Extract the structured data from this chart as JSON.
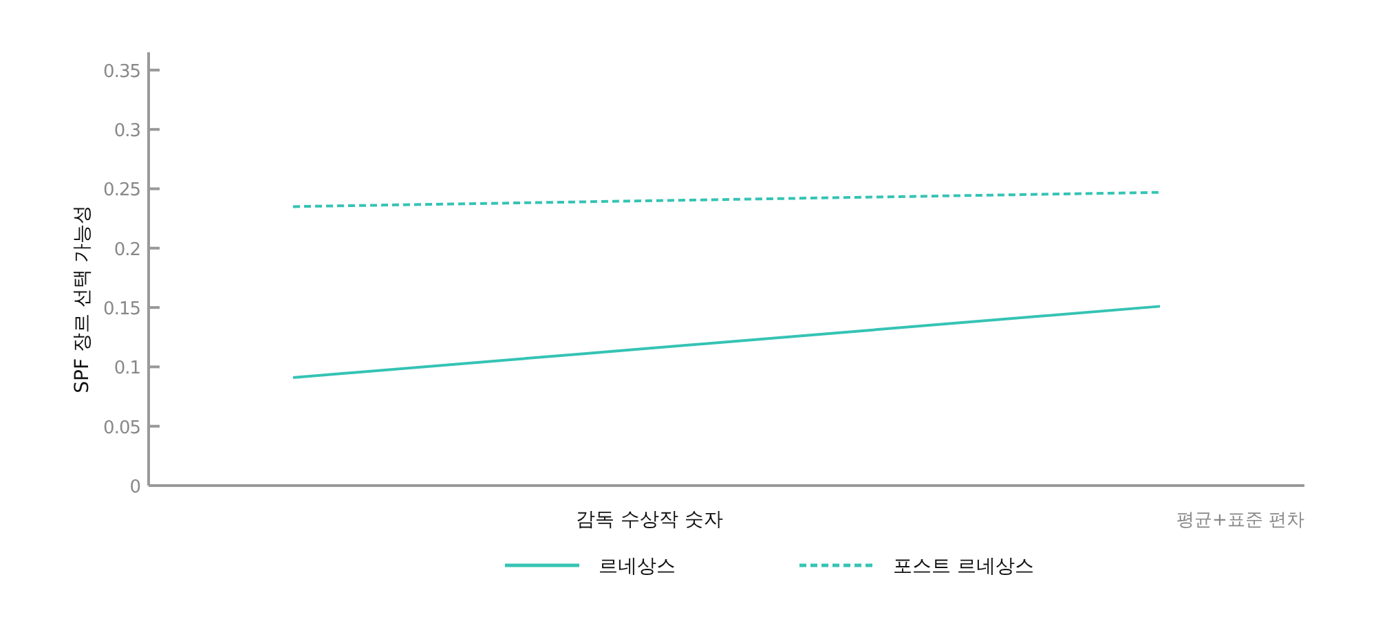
{
  "chart_data": {
    "type": "line",
    "ylabel": "SPF 장르 선택 가능성",
    "xlabel": "감독 수상작 숫자",
    "annotations": [
      "평균+표준 편차"
    ],
    "categories": [
      null,
      null,
      null,
      null
    ],
    "series": [
      {
        "name": "르네상스",
        "color": "#35c3b4",
        "line_style": "solid",
        "values": [
          0.091,
          0.111,
          0.131,
          0.151
        ]
      },
      {
        "name": "포스트 르네상스",
        "color": "#35c3b4",
        "line_style": "dashed",
        "values": [
          0.235,
          0.239,
          0.243,
          0.247
        ]
      }
    ],
    "ylim": [
      0,
      0.365
    ],
    "yticks": [
      0,
      0.05,
      0.1,
      0.15,
      0.2,
      0.25,
      0.3,
      0.35
    ],
    "legend": "bottom"
  }
}
